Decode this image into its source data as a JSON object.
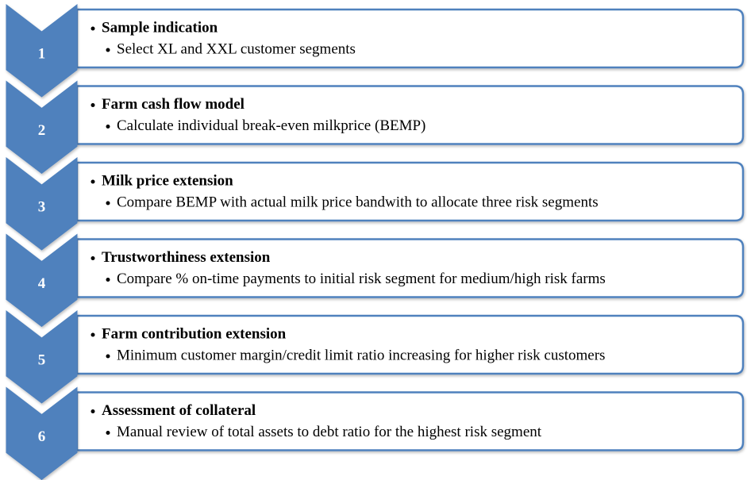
{
  "steps": [
    {
      "number": "1",
      "title": "Sample indication",
      "detail": "Select XL and XXL customer segments"
    },
    {
      "number": "2",
      "title": "Farm cash flow model",
      "detail": "Calculate individual break-even milkprice (BEMP)"
    },
    {
      "number": "3",
      "title": "Milk price extension",
      "detail": "Compare BEMP with actual milk price bandwith to allocate three risk segments"
    },
    {
      "number": "4",
      "title": "Trustworthiness extension",
      "detail": "Compare % on-time payments to initial risk segment for medium/high risk farms"
    },
    {
      "number": "5",
      "title": "Farm contribution extension",
      "detail": "Minimum customer margin/credit limit ratio increasing for higher risk customers"
    },
    {
      "number": "6",
      "title": "Assessment of collateral",
      "detail": "Manual review of total assets to debt ratio for the highest risk segment"
    }
  ]
}
